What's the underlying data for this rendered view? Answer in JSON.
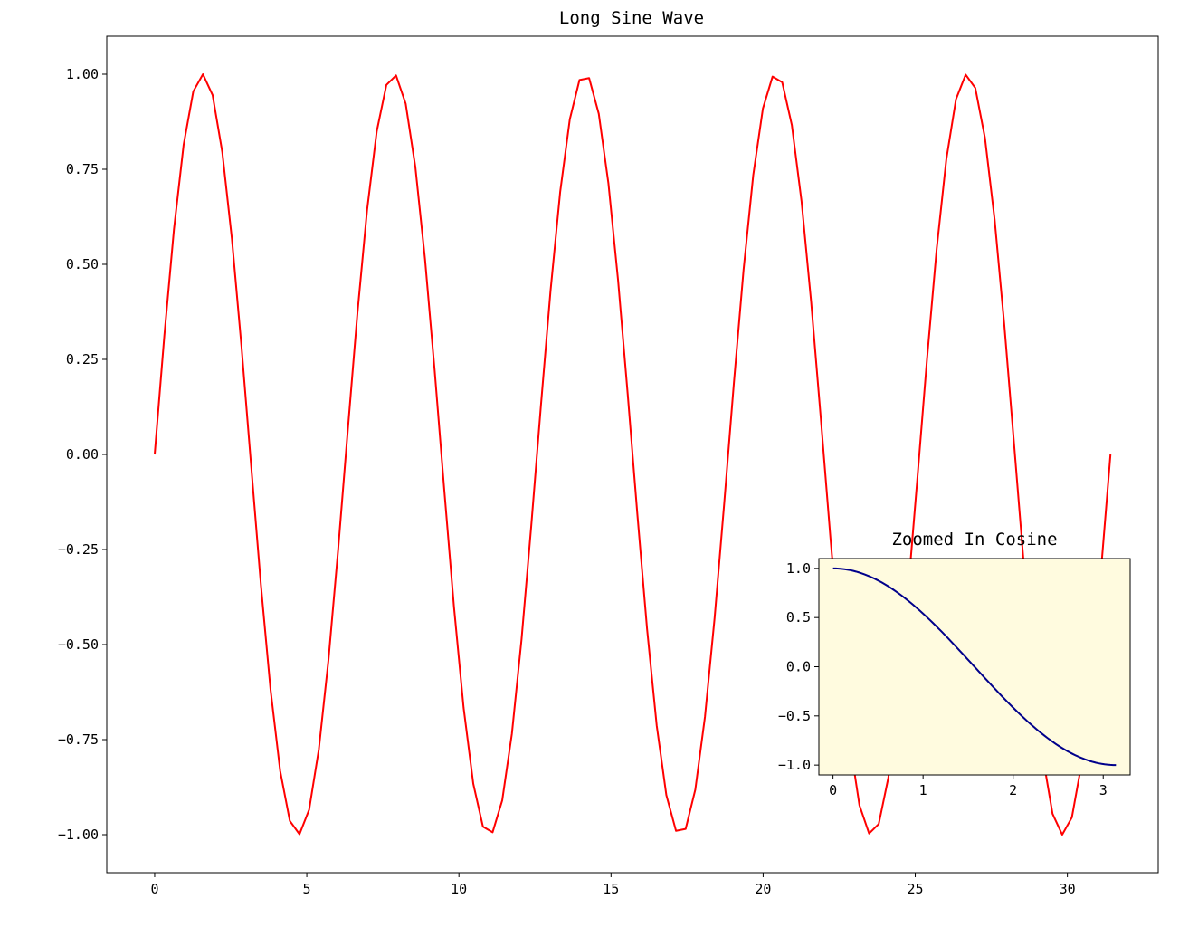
{
  "chart_data": [
    {
      "type": "line",
      "title": "Long Sine Wave",
      "xlabel": "",
      "ylabel": "",
      "xlim": [
        -1.575,
        32.985
      ],
      "ylim": [
        -1.1,
        1.1
      ],
      "xticks": [
        0,
        5,
        10,
        15,
        20,
        25,
        30
      ],
      "xtick_labels": [
        "0",
        "5",
        "10",
        "15",
        "20",
        "25",
        "30"
      ],
      "yticks": [
        1.0,
        0.75,
        0.5,
        0.25,
        0.0,
        -0.25,
        -0.5,
        -0.75,
        -1.0
      ],
      "ytick_labels": [
        "1.00",
        "0.75",
        "0.50",
        "0.25",
        "0.00",
        "−0.25",
        "−0.50",
        "−0.75",
        "−1.00"
      ],
      "grid": false,
      "series": [
        {
          "color": "#ff0000",
          "function": "sin(x)",
          "x_range": [
            0,
            31.4159
          ],
          "n_points": 100
        }
      ]
    },
    {
      "type": "line",
      "title": "Zoomed In Cosine",
      "xlabel": "",
      "ylabel": "",
      "xlim": [
        -0.157,
        3.299
      ],
      "ylim": [
        -1.1,
        1.1
      ],
      "xticks": [
        0,
        1,
        2,
        3
      ],
      "xtick_labels": [
        "0",
        "1",
        "2",
        "3"
      ],
      "yticks": [
        1.0,
        0.5,
        0.0,
        -0.5,
        -1.0
      ],
      "ytick_labels": [
        "1.0",
        "0.5",
        "0.0",
        "−0.5",
        "−1.0"
      ],
      "grid": false,
      "background": "#fffbdf",
      "series": [
        {
          "color": "#00008b",
          "function": "cos(x)",
          "x_range": [
            0,
            3.14159
          ],
          "n_points": 100
        }
      ]
    }
  ]
}
